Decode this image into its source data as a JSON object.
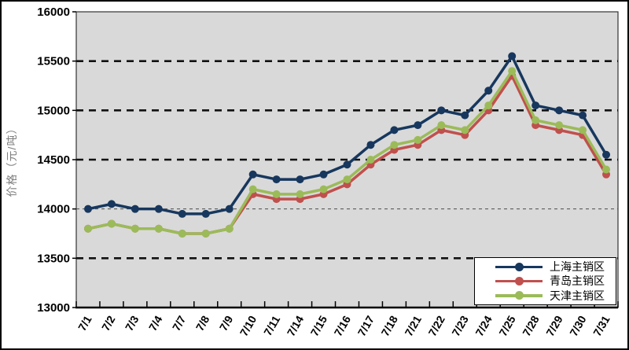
{
  "chart_data": {
    "type": "line",
    "title": "",
    "xlabel": "",
    "ylabel": "价格（元/吨）",
    "ylim": [
      13000,
      16000
    ],
    "yticks": [
      13000,
      13500,
      14000,
      14500,
      15000,
      15500,
      16000
    ],
    "grid": "dashed horizontal",
    "plot_bg_color": "#d9d9d9",
    "legend_position": "bottom-right inside",
    "categories": [
      "7/1",
      "7/2",
      "7/3",
      "7/4",
      "7/7",
      "7/8",
      "7/9",
      "7/10",
      "7/11",
      "7/14",
      "7/15",
      "7/16",
      "7/17",
      "7/18",
      "7/21",
      "7/22",
      "7/23",
      "7/24",
      "7/25",
      "7/28",
      "7/29",
      "7/30",
      "7/31"
    ],
    "series": [
      {
        "name": "上海主销区",
        "color": "#17375e",
        "values": [
          14000,
          14050,
          14000,
          14000,
          13950,
          13950,
          14000,
          14350,
          14300,
          14300,
          14350,
          14450,
          14650,
          14800,
          14850,
          15000,
          14950,
          15200,
          15550,
          15050,
          15000,
          14950,
          14550
        ]
      },
      {
        "name": "青岛主销区",
        "color": "#c0504d",
        "values": [
          13800,
          13850,
          13800,
          13800,
          13750,
          13750,
          13800,
          14150,
          14100,
          14100,
          14150,
          14250,
          14450,
          14600,
          14650,
          14800,
          14750,
          15000,
          15350,
          14850,
          14800,
          14750,
          14350
        ]
      },
      {
        "name": "天津主销区",
        "color": "#9bbb59",
        "values": [
          13800,
          13850,
          13800,
          13800,
          13750,
          13750,
          13800,
          14200,
          14150,
          14150,
          14200,
          14300,
          14500,
          14650,
          14700,
          14850,
          14800,
          15050,
          15400,
          14900,
          14850,
          14800,
          14400
        ]
      }
    ]
  }
}
